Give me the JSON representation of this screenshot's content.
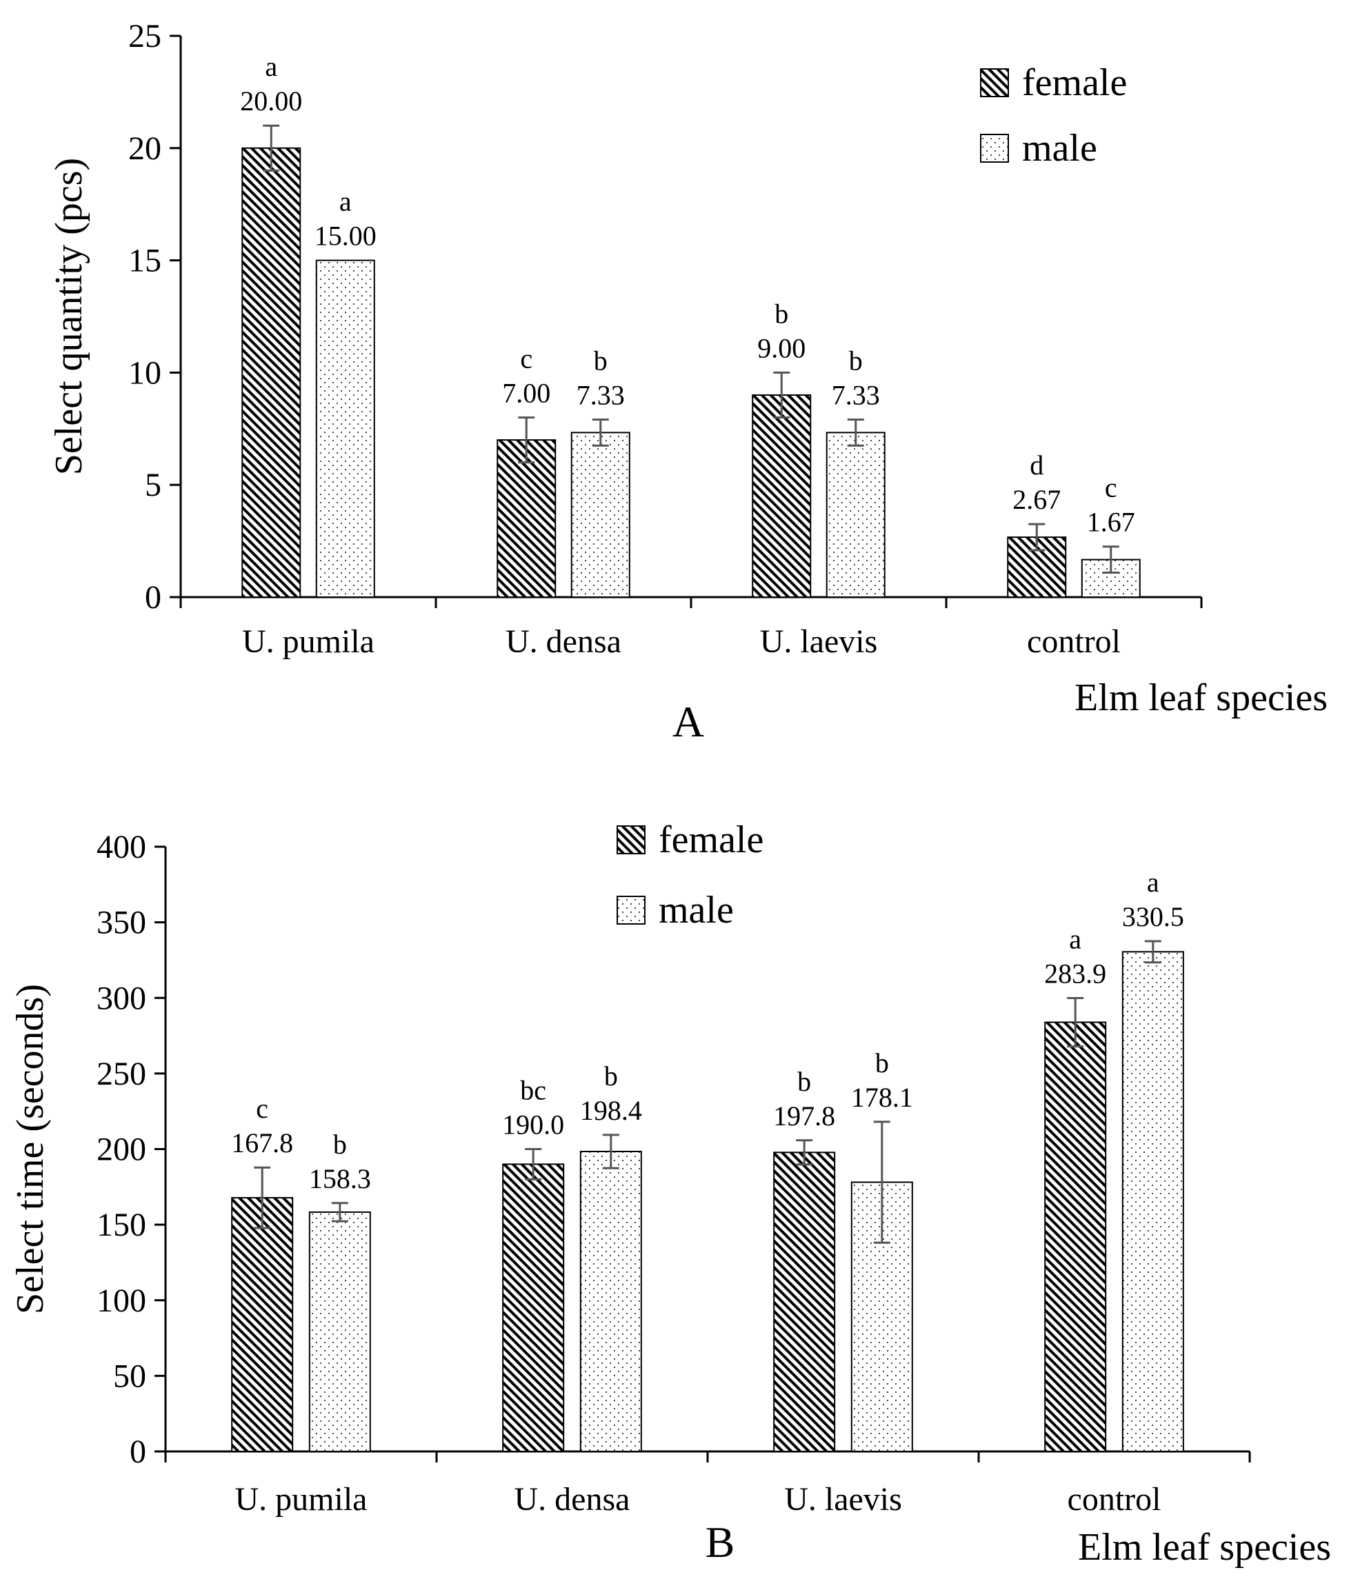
{
  "chart_data": [
    {
      "type": "bar",
      "panel": "A",
      "title": "",
      "xlabel": "Elm leaf species",
      "ylabel": "Select quantity (pcs)",
      "ylim": [
        0,
        25
      ],
      "yticks": [
        0,
        5,
        10,
        15,
        20,
        25
      ],
      "categories": [
        "U. pumila",
        "U. densa",
        "U. laevis",
        "control"
      ],
      "legend_position": "top-right",
      "series": [
        {
          "name": "female",
          "pattern": "diagonal-hatch",
          "values": [
            20.0,
            7.0,
            9.0,
            2.67
          ],
          "errors": [
            1.0,
            1.0,
            1.0,
            0.58
          ],
          "value_labels": [
            "20.00",
            "7.00",
            "9.00",
            "2.67"
          ],
          "significance": [
            "a",
            "c",
            "b",
            "d"
          ]
        },
        {
          "name": "male",
          "pattern": "dotted",
          "values": [
            15.0,
            7.33,
            7.33,
            1.67
          ],
          "errors": [
            0.0,
            0.58,
            0.58,
            0.58
          ],
          "value_labels": [
            "15.00",
            "7.33",
            "7.33",
            "1.67"
          ],
          "significance": [
            "a",
            "b",
            "b",
            "c"
          ]
        }
      ]
    },
    {
      "type": "bar",
      "panel": "B",
      "title": "",
      "xlabel": "Elm leaf species",
      "ylabel": "Select time (seconds)",
      "ylim": [
        0,
        400
      ],
      "yticks": [
        0,
        50,
        100,
        150,
        200,
        250,
        300,
        350,
        400
      ],
      "categories": [
        "U. pumila",
        "U. densa",
        "U. laevis",
        "control"
      ],
      "legend_position": "top-center",
      "series": [
        {
          "name": "female",
          "pattern": "diagonal-hatch",
          "values": [
            167.8,
            190.0,
            197.8,
            283.9
          ],
          "errors": [
            20.0,
            10.0,
            8.0,
            16.0
          ],
          "value_labels": [
            "167.8",
            "190.0",
            "197.8",
            "283.9"
          ],
          "significance": [
            "c",
            "bc",
            "b",
            "a"
          ]
        },
        {
          "name": "male",
          "pattern": "dotted",
          "values": [
            158.3,
            198.4,
            178.1,
            330.5
          ],
          "errors": [
            6.0,
            11.0,
            40.0,
            7.0
          ],
          "value_labels": [
            "158.3",
            "198.4",
            "178.1",
            "330.5"
          ],
          "significance": [
            "b",
            "b",
            "b",
            "a"
          ]
        }
      ]
    }
  ]
}
